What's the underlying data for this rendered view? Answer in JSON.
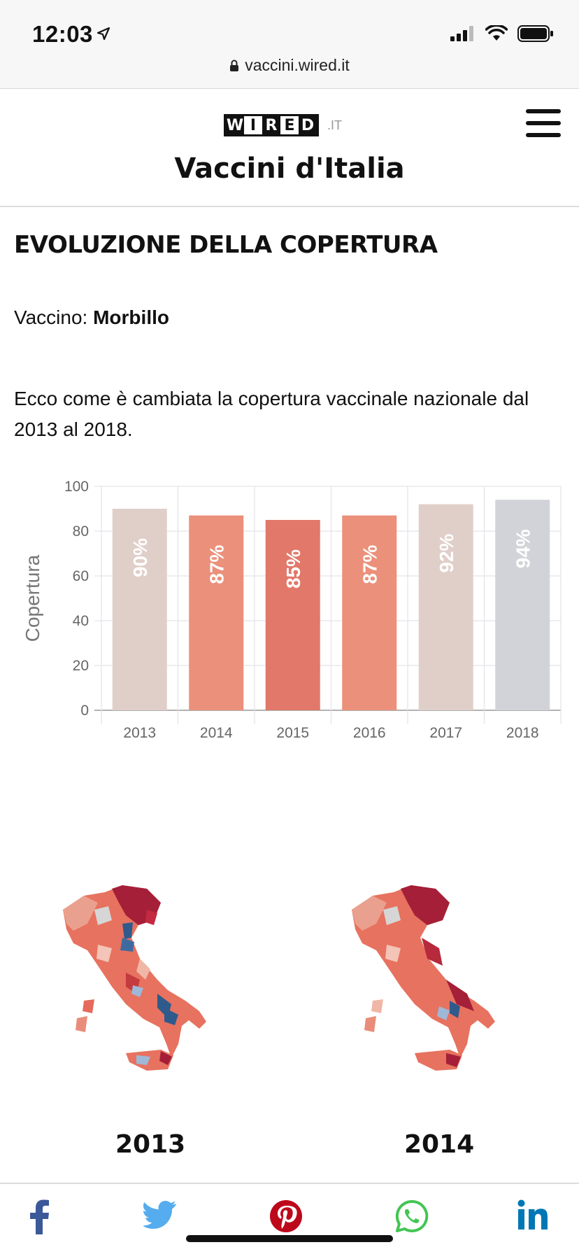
{
  "status": {
    "time": "12:03",
    "url": "vaccini.wired.it"
  },
  "header": {
    "logo_letters": [
      "W",
      "I",
      "R",
      "E",
      "D"
    ],
    "logo_tld": ".IT",
    "site_title": "Vaccini d'Italia"
  },
  "section": {
    "title": "EVOLUZIONE DELLA COPERTURA",
    "vaccine_label": "Vaccino:",
    "vaccine_value": "Morbillo",
    "description": "Ecco come è cambiata la copertura vaccinale nazionale dal 2013 al 2018."
  },
  "chart_data": {
    "type": "bar",
    "categories": [
      "2013",
      "2014",
      "2015",
      "2016",
      "2017",
      "2018"
    ],
    "values": [
      90,
      87,
      85,
      87,
      92,
      94
    ],
    "data_labels": [
      "90%",
      "87%",
      "85%",
      "87%",
      "92%",
      "94%"
    ],
    "bar_colors": [
      "#e0cfc9",
      "#eb907a",
      "#e2786a",
      "#eb907a",
      "#e0cfc9",
      "#d1d3d8"
    ],
    "ylabel": "Copertura",
    "xlabel": "",
    "ylim": [
      0,
      100
    ],
    "yticks": [
      0,
      20,
      40,
      60,
      80,
      100
    ],
    "grid": true
  },
  "maps": [
    {
      "year": "2013"
    },
    {
      "year": "2014"
    }
  ],
  "share": {
    "icons": [
      "facebook-icon",
      "twitter-icon",
      "pinterest-icon",
      "whatsapp-icon",
      "linkedin-icon"
    ]
  },
  "colors": {
    "facebook": "#3b5998",
    "twitter": "#55acee",
    "pinterest": "#bd081c",
    "whatsapp": "#43c553",
    "linkedin": "#0077b5"
  }
}
